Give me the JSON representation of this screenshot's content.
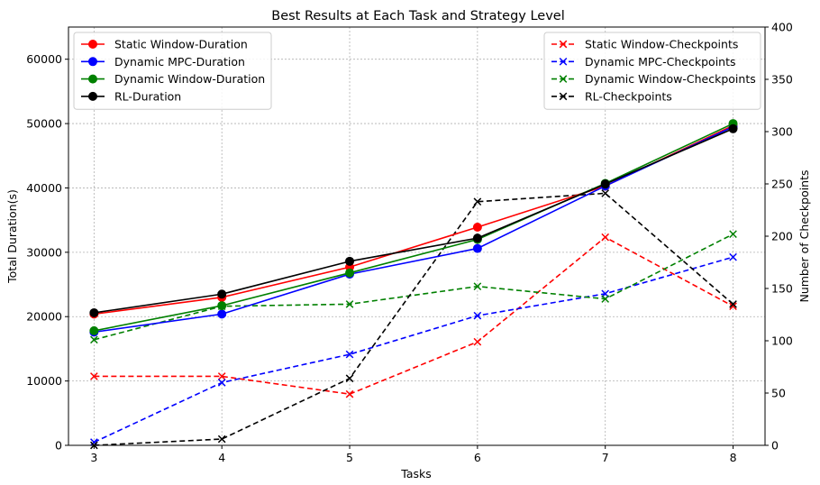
{
  "chart_data": {
    "type": "line",
    "title": "Best Results at Each Task and Strategy Level",
    "xlabel": "Tasks",
    "ylabel_left": "Total Duration(s)",
    "ylabel_right": "Number of Checkpoints",
    "x": [
      3,
      4,
      5,
      6,
      7,
      8
    ],
    "xlim": [
      2.8,
      8.25
    ],
    "ylim_left": [
      0,
      65000
    ],
    "ylim_right": [
      0,
      400
    ],
    "yticks_left": [
      0,
      10000,
      20000,
      30000,
      40000,
      50000,
      60000
    ],
    "yticks_right": [
      0,
      50,
      100,
      150,
      200,
      250,
      300,
      350,
      400
    ],
    "grid": true,
    "legend_left_placement": "top-left",
    "legend_right_placement": "top-right",
    "series_left": [
      {
        "name": "Static Window-Duration",
        "color": "#ff0000",
        "marker": "circle",
        "style": "solid",
        "values": [
          20400,
          23000,
          27700,
          33900,
          40300,
          49700
        ]
      },
      {
        "name": "Dynamic MPC-Duration",
        "color": "#0000ff",
        "marker": "circle",
        "style": "solid",
        "values": [
          17600,
          20400,
          26600,
          30600,
          40300,
          49500
        ]
      },
      {
        "name": "Dynamic Window-Duration",
        "color": "#008000",
        "marker": "circle",
        "style": "solid",
        "values": [
          17800,
          21700,
          26800,
          32000,
          40700,
          50000
        ]
      },
      {
        "name": "RL-Duration",
        "color": "#000000",
        "marker": "circle",
        "style": "solid",
        "values": [
          20600,
          23500,
          28600,
          32200,
          40600,
          49200
        ]
      }
    ],
    "series_right": [
      {
        "name": "Static Window-Checkpoints",
        "color": "#ff0000",
        "marker": "x",
        "style": "dashed",
        "values": [
          66,
          66,
          49,
          99,
          199,
          133
        ]
      },
      {
        "name": "Dynamic MPC-Checkpoints",
        "color": "#0000ff",
        "marker": "x",
        "style": "dashed",
        "values": [
          3,
          60,
          87,
          124,
          145,
          180
        ]
      },
      {
        "name": "Dynamic Window-Checkpoints",
        "color": "#008000",
        "marker": "x",
        "style": "dashed",
        "values": [
          101,
          133,
          135,
          152,
          140,
          202
        ]
      },
      {
        "name": "RL-Checkpoints",
        "color": "#000000",
        "marker": "x",
        "style": "dashed",
        "values": [
          0,
          6,
          64,
          233,
          241,
          135
        ]
      }
    ]
  }
}
